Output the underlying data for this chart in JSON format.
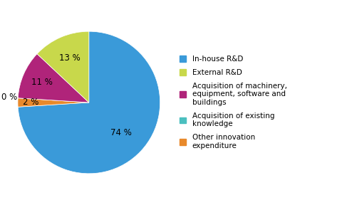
{
  "values": [
    74,
    2,
    0,
    11,
    13
  ],
  "colors": [
    "#3a9ad9",
    "#e8892b",
    "#4bbfbf",
    "#b0247a",
    "#c8d84b"
  ],
  "pct_labels": [
    "74 %",
    "2 %",
    "0 %",
    "11 %",
    "13 %"
  ],
  "pct_radii": [
    0.62,
    0.82,
    1.12,
    0.72,
    0.68
  ],
  "legend_labels": [
    "In-house R&D",
    "External R&D",
    "Acquisition of machinery,\nequipment, software and\nbuildings",
    "Acquisition of existing\nknowledge",
    "Other innovation\nexpenditure"
  ],
  "legend_colors": [
    "#3a9ad9",
    "#c8d84b",
    "#b0247a",
    "#4bbfbf",
    "#e8892b"
  ],
  "startangle": 90,
  "background_color": "#ffffff",
  "text_fontsize": 8.5,
  "legend_fontsize": 7.5
}
